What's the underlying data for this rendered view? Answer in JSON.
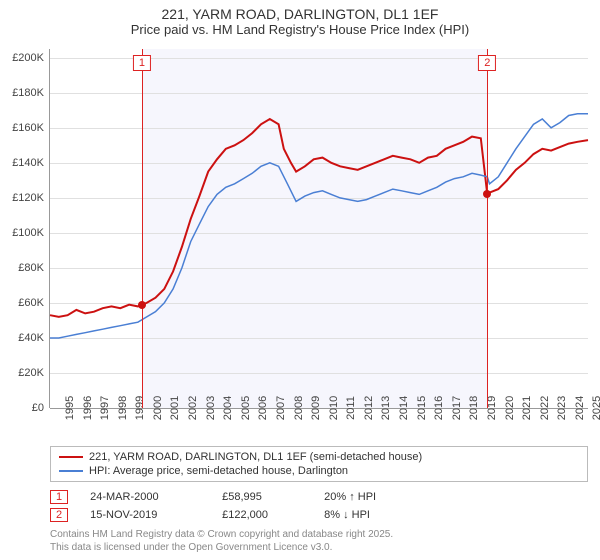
{
  "title_line1": "221, YARM ROAD, DARLINGTON, DL1 1EF",
  "title_line2": "Price paid vs. HM Land Registry's House Price Index (HPI)",
  "chart": {
    "type": "line",
    "background_color": "#ffffff",
    "plot_shade_color": "#f6f6fd",
    "grid_color": "#e0e0e0",
    "axis_color": "#999999",
    "label_color": "#444444",
    "label_fontsize": 11,
    "xlim": [
      1995,
      2025.6
    ],
    "ylim": [
      0,
      205000
    ],
    "shade_xrange": [
      2000.23,
      2019.87
    ],
    "y_ticks": [
      0,
      20000,
      40000,
      60000,
      80000,
      100000,
      120000,
      140000,
      160000,
      180000,
      200000
    ],
    "y_tick_labels": [
      "£0",
      "£20K",
      "£40K",
      "£60K",
      "£80K",
      "£100K",
      "£120K",
      "£140K",
      "£160K",
      "£180K",
      "£200K"
    ],
    "x_ticks": [
      1995,
      1996,
      1997,
      1998,
      1999,
      2000,
      2001,
      2002,
      2003,
      2004,
      2005,
      2006,
      2007,
      2008,
      2009,
      2010,
      2011,
      2012,
      2013,
      2014,
      2015,
      2016,
      2017,
      2018,
      2019,
      2020,
      2021,
      2022,
      2023,
      2024,
      2025
    ],
    "series": [
      {
        "key": "price_paid",
        "label": "221, YARM ROAD, DARLINGTON, DL1 1EF (semi-detached house)",
        "color": "#cc1111",
        "line_width": 2,
        "data": [
          [
            1995,
            53000
          ],
          [
            1995.5,
            52000
          ],
          [
            1996,
            53000
          ],
          [
            1996.5,
            56000
          ],
          [
            1997,
            54000
          ],
          [
            1997.5,
            55000
          ],
          [
            1998,
            57000
          ],
          [
            1998.5,
            58000
          ],
          [
            1999,
            57000
          ],
          [
            1999.5,
            59000
          ],
          [
            2000,
            58000
          ],
          [
            2000.23,
            58995
          ],
          [
            2000.5,
            60000
          ],
          [
            2001,
            63000
          ],
          [
            2001.5,
            68000
          ],
          [
            2002,
            78000
          ],
          [
            2002.5,
            92000
          ],
          [
            2003,
            108000
          ],
          [
            2003.5,
            121000
          ],
          [
            2004,
            135000
          ],
          [
            2004.5,
            142000
          ],
          [
            2005,
            148000
          ],
          [
            2005.5,
            150000
          ],
          [
            2006,
            153000
          ],
          [
            2006.5,
            157000
          ],
          [
            2007,
            162000
          ],
          [
            2007.5,
            165000
          ],
          [
            2008,
            162000
          ],
          [
            2008.3,
            148000
          ],
          [
            2008.7,
            140000
          ],
          [
            2009,
            135000
          ],
          [
            2009.5,
            138000
          ],
          [
            2010,
            142000
          ],
          [
            2010.5,
            143000
          ],
          [
            2011,
            140000
          ],
          [
            2011.5,
            138000
          ],
          [
            2012,
            137000
          ],
          [
            2012.5,
            136000
          ],
          [
            2013,
            138000
          ],
          [
            2013.5,
            140000
          ],
          [
            2014,
            142000
          ],
          [
            2014.5,
            144000
          ],
          [
            2015,
            143000
          ],
          [
            2015.5,
            142000
          ],
          [
            2016,
            140000
          ],
          [
            2016.5,
            143000
          ],
          [
            2017,
            144000
          ],
          [
            2017.5,
            148000
          ],
          [
            2018,
            150000
          ],
          [
            2018.5,
            152000
          ],
          [
            2019,
            155000
          ],
          [
            2019.5,
            154000
          ],
          [
            2019.87,
            122000
          ],
          [
            2020,
            123000
          ],
          [
            2020.5,
            125000
          ],
          [
            2021,
            130000
          ],
          [
            2021.5,
            136000
          ],
          [
            2022,
            140000
          ],
          [
            2022.5,
            145000
          ],
          [
            2023,
            148000
          ],
          [
            2023.5,
            147000
          ],
          [
            2024,
            149000
          ],
          [
            2024.5,
            151000
          ],
          [
            2025,
            152000
          ],
          [
            2025.6,
            153000
          ]
        ]
      },
      {
        "key": "hpi",
        "label": "HPI: Average price, semi-detached house, Darlington",
        "color": "#4a7fd4",
        "line_width": 1.5,
        "data": [
          [
            1995,
            40000
          ],
          [
            1995.5,
            40000
          ],
          [
            1996,
            41000
          ],
          [
            1996.5,
            42000
          ],
          [
            1997,
            43000
          ],
          [
            1997.5,
            44000
          ],
          [
            1998,
            45000
          ],
          [
            1998.5,
            46000
          ],
          [
            1999,
            47000
          ],
          [
            1999.5,
            48000
          ],
          [
            2000,
            49000
          ],
          [
            2000.5,
            52000
          ],
          [
            2001,
            55000
          ],
          [
            2001.5,
            60000
          ],
          [
            2002,
            68000
          ],
          [
            2002.5,
            80000
          ],
          [
            2003,
            95000
          ],
          [
            2003.5,
            105000
          ],
          [
            2004,
            115000
          ],
          [
            2004.5,
            122000
          ],
          [
            2005,
            126000
          ],
          [
            2005.5,
            128000
          ],
          [
            2006,
            131000
          ],
          [
            2006.5,
            134000
          ],
          [
            2007,
            138000
          ],
          [
            2007.5,
            140000
          ],
          [
            2008,
            138000
          ],
          [
            2008.5,
            128000
          ],
          [
            2009,
            118000
          ],
          [
            2009.5,
            121000
          ],
          [
            2010,
            123000
          ],
          [
            2010.5,
            124000
          ],
          [
            2011,
            122000
          ],
          [
            2011.5,
            120000
          ],
          [
            2012,
            119000
          ],
          [
            2012.5,
            118000
          ],
          [
            2013,
            119000
          ],
          [
            2013.5,
            121000
          ],
          [
            2014,
            123000
          ],
          [
            2014.5,
            125000
          ],
          [
            2015,
            124000
          ],
          [
            2015.5,
            123000
          ],
          [
            2016,
            122000
          ],
          [
            2016.5,
            124000
          ],
          [
            2017,
            126000
          ],
          [
            2017.5,
            129000
          ],
          [
            2018,
            131000
          ],
          [
            2018.5,
            132000
          ],
          [
            2019,
            134000
          ],
          [
            2019.5,
            133000
          ],
          [
            2019.87,
            132000
          ],
          [
            2020,
            128000
          ],
          [
            2020.5,
            132000
          ],
          [
            2021,
            140000
          ],
          [
            2021.5,
            148000
          ],
          [
            2022,
            155000
          ],
          [
            2022.5,
            162000
          ],
          [
            2023,
            165000
          ],
          [
            2023.5,
            160000
          ],
          [
            2024,
            163000
          ],
          [
            2024.5,
            167000
          ],
          [
            2025,
            168000
          ],
          [
            2025.6,
            168000
          ]
        ]
      }
    ],
    "markers": [
      {
        "x": 2000.23,
        "y": 58995,
        "color": "#cc1111",
        "label": "1"
      },
      {
        "x": 2019.87,
        "y": 122000,
        "color": "#cc1111",
        "label": "2"
      }
    ]
  },
  "legend": {
    "border_color": "#bbbbbb"
  },
  "events": [
    {
      "num": "1",
      "date": "24-MAR-2000",
      "price": "£58,995",
      "delta_pct": "20%",
      "delta_dir": "↑",
      "delta_ref": "HPI"
    },
    {
      "num": "2",
      "date": "15-NOV-2019",
      "price": "£122,000",
      "delta_pct": "8%",
      "delta_dir": "↓",
      "delta_ref": "HPI"
    }
  ],
  "copyright_line1": "Contains HM Land Registry data © Crown copyright and database right 2025.",
  "copyright_line2": "This data is licensed under the Open Government Licence v3.0."
}
